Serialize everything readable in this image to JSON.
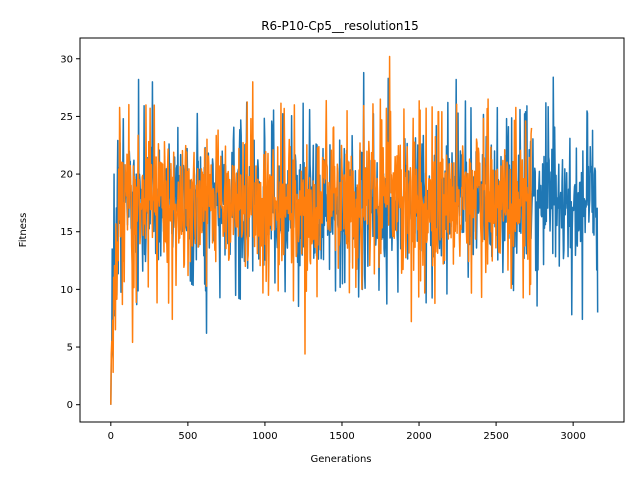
{
  "chart_data": {
    "type": "line",
    "title": "R6-P10-Cp5__resolution15",
    "xlabel": "Generations",
    "ylabel": "Fitness",
    "xlim": [
      -200,
      3330
    ],
    "ylim": [
      -1.5,
      31.8
    ],
    "xticks": [
      0,
      500,
      1000,
      1500,
      2000,
      2500,
      3000
    ],
    "yticks": [
      0,
      5,
      10,
      15,
      20,
      25,
      30
    ],
    "grid": false,
    "legend": "none",
    "series": [
      {
        "color": "#1f77b4",
        "x_range": [
          0,
          3160
        ],
        "values_summary": {
          "min": 0,
          "max": 28.9,
          "typical_low": 11,
          "typical_high": 24,
          "mean": 17.5
        },
        "anchors": [
          {
            "x": 0,
            "y": 0
          },
          {
            "x": 10,
            "y": 13.5
          },
          {
            "x": 20,
            "y": 20
          },
          {
            "x": 60,
            "y": 22.7
          },
          {
            "x": 180,
            "y": 28.2
          },
          {
            "x": 270,
            "y": 28.0
          },
          {
            "x": 620,
            "y": 6.2
          },
          {
            "x": 1640,
            "y": 28.8
          },
          {
            "x": 1800,
            "y": 28.3
          },
          {
            "x": 2240,
            "y": 28.2
          },
          {
            "x": 2870,
            "y": 28.4
          },
          {
            "x": 2990,
            "y": 7.8
          },
          {
            "x": 3060,
            "y": 7.4
          },
          {
            "x": 3160,
            "y": 8.0
          }
        ]
      },
      {
        "color": "#ff7f0e",
        "x_range": [
          0,
          2730
        ],
        "values_summary": {
          "min": 0,
          "max": 30.2,
          "typical_low": 11,
          "typical_high": 24,
          "mean": 17.5
        },
        "anchors": [
          {
            "x": 0,
            "y": 0
          },
          {
            "x": 15,
            "y": 2.8
          },
          {
            "x": 30,
            "y": 6.5
          },
          {
            "x": 60,
            "y": 23.8
          },
          {
            "x": 140,
            "y": 5.4
          },
          {
            "x": 400,
            "y": 7.4
          },
          {
            "x": 920,
            "y": 28.0
          },
          {
            "x": 1260,
            "y": 4.4
          },
          {
            "x": 1810,
            "y": 30.2
          },
          {
            "x": 1950,
            "y": 7.2
          },
          {
            "x": 2730,
            "y": 24.0
          }
        ]
      }
    ]
  }
}
